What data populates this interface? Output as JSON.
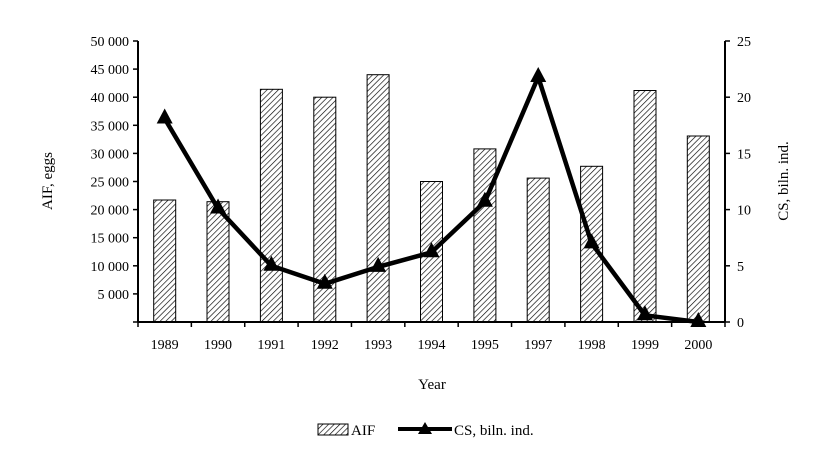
{
  "chart_data": {
    "type": "bar+line",
    "categories": [
      "1989",
      "1990",
      "1991",
      "1992",
      "1993",
      "1994",
      "1995",
      "1997",
      "1998",
      "1999",
      "2000"
    ],
    "series": [
      {
        "name": "AIF",
        "type": "bar",
        "axis": "left",
        "pattern": "diagonal-hatch",
        "values": [
          21700,
          21400,
          41400,
          40000,
          44000,
          25000,
          30800,
          25600,
          27700,
          41200,
          33100
        ]
      },
      {
        "name": "CS, biln. ind.",
        "type": "line",
        "axis": "right",
        "marker": "triangle",
        "color": "#000000",
        "values": [
          18.1,
          10.1,
          5.0,
          3.4,
          4.9,
          6.2,
          10.7,
          21.8,
          7.0,
          0.6,
          0.0
        ]
      }
    ],
    "xlabel": "Year",
    "ylabel_left": "AIF, eggs",
    "ylabel_right": "CS, biln. ind.",
    "ylim_left": [
      0,
      50000
    ],
    "ylim_right": [
      0,
      25
    ],
    "yticks_left": [
      "",
      "5 000",
      "10 000",
      "15 000",
      "20 000",
      "25 000",
      "30 000",
      "35 000",
      "40 000",
      "45 000",
      "50 000"
    ],
    "yticks_right": [
      "0",
      "5",
      "10",
      "15",
      "20",
      "25"
    ],
    "grid": false,
    "legend_position": "bottom"
  }
}
